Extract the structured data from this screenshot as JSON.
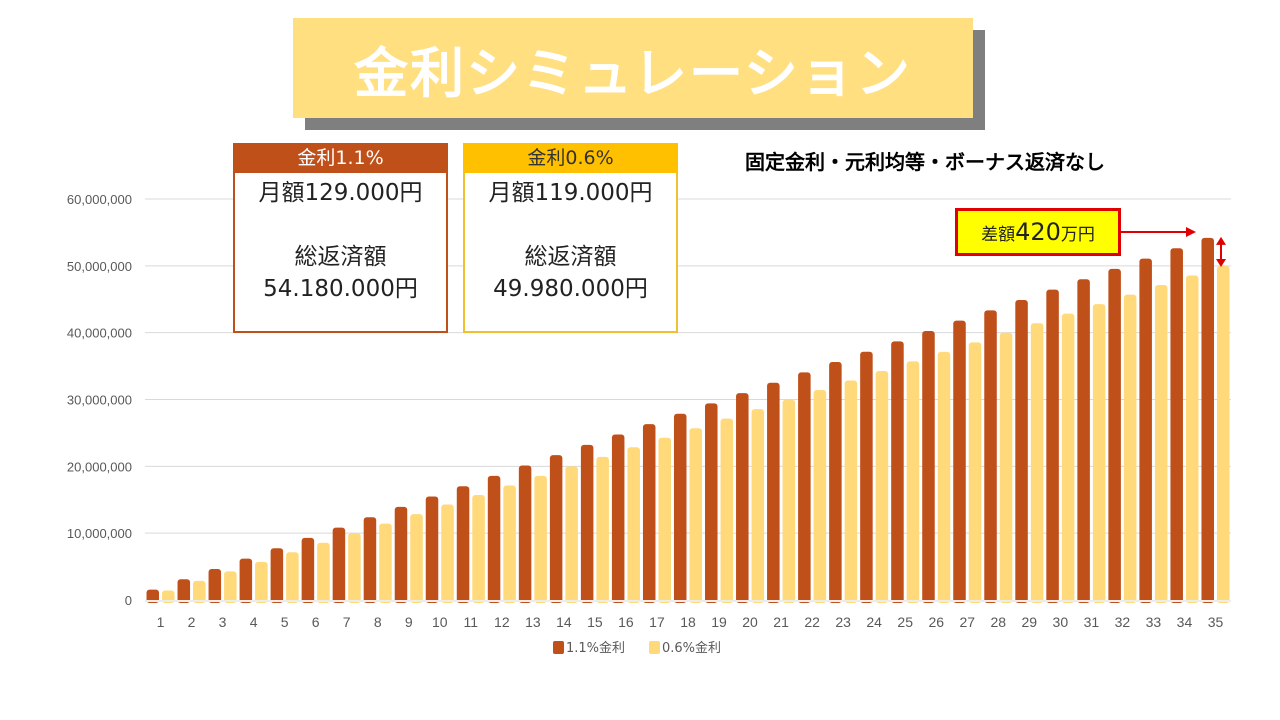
{
  "title": "金利シミュレーション",
  "subtitle": "固定金利・元利均等・ボーナス返済なし",
  "cards": [
    {
      "header": "金利1.1%",
      "monthly": "月額129.000円",
      "total_label": "総返済額",
      "total": "54.180.000円",
      "color": "#C0501A"
    },
    {
      "header": "金利0.6%",
      "monthly": "月額119.000円",
      "total_label": "総返済額",
      "total": "49.980.000円",
      "color": "#FFC000"
    }
  ],
  "annotation": {
    "prefix": "差額",
    "amount": "420",
    "unit": "万円"
  },
  "chart_data": {
    "type": "bar",
    "categories": [
      "1",
      "2",
      "3",
      "4",
      "5",
      "6",
      "7",
      "8",
      "9",
      "10",
      "11",
      "12",
      "13",
      "14",
      "15",
      "16",
      "17",
      "18",
      "19",
      "20",
      "21",
      "22",
      "23",
      "24",
      "25",
      "26",
      "27",
      "28",
      "29",
      "30",
      "31",
      "32",
      "33",
      "34",
      "35"
    ],
    "series": [
      {
        "name": "1.1%金利",
        "color": "#C0501A",
        "values": [
          1548000,
          3096000,
          4644000,
          6192000,
          7740000,
          9288000,
          10836000,
          12384000,
          13932000,
          15480000,
          17028000,
          18576000,
          20124000,
          21672000,
          23220000,
          24768000,
          26316000,
          27864000,
          29412000,
          30960000,
          32508000,
          34056000,
          35604000,
          37152000,
          38700000,
          40248000,
          41796000,
          43344000,
          44892000,
          46440000,
          47988000,
          49536000,
          51084000,
          52632000,
          54180000
        ]
      },
      {
        "name": "0.6%金利",
        "color": "#FFD97A",
        "values": [
          1428000,
          2856000,
          4284000,
          5712000,
          7140000,
          8568000,
          9996000,
          11424000,
          12852000,
          14280000,
          15708000,
          17136000,
          18564000,
          19992000,
          21420000,
          22848000,
          24276000,
          25704000,
          27132000,
          28560000,
          29988000,
          31416000,
          32844000,
          34272000,
          35700000,
          37128000,
          38556000,
          39984000,
          41412000,
          42840000,
          44268000,
          45696000,
          47124000,
          48552000,
          49980000
        ]
      }
    ],
    "yticks": [
      "0",
      "10,000,000",
      "20,000,000",
      "30,000,000",
      "40,000,000",
      "50,000,000",
      "60,000,000"
    ],
    "ylim": [
      0,
      60000000
    ],
    "grid": true,
    "legend": "bottom"
  }
}
